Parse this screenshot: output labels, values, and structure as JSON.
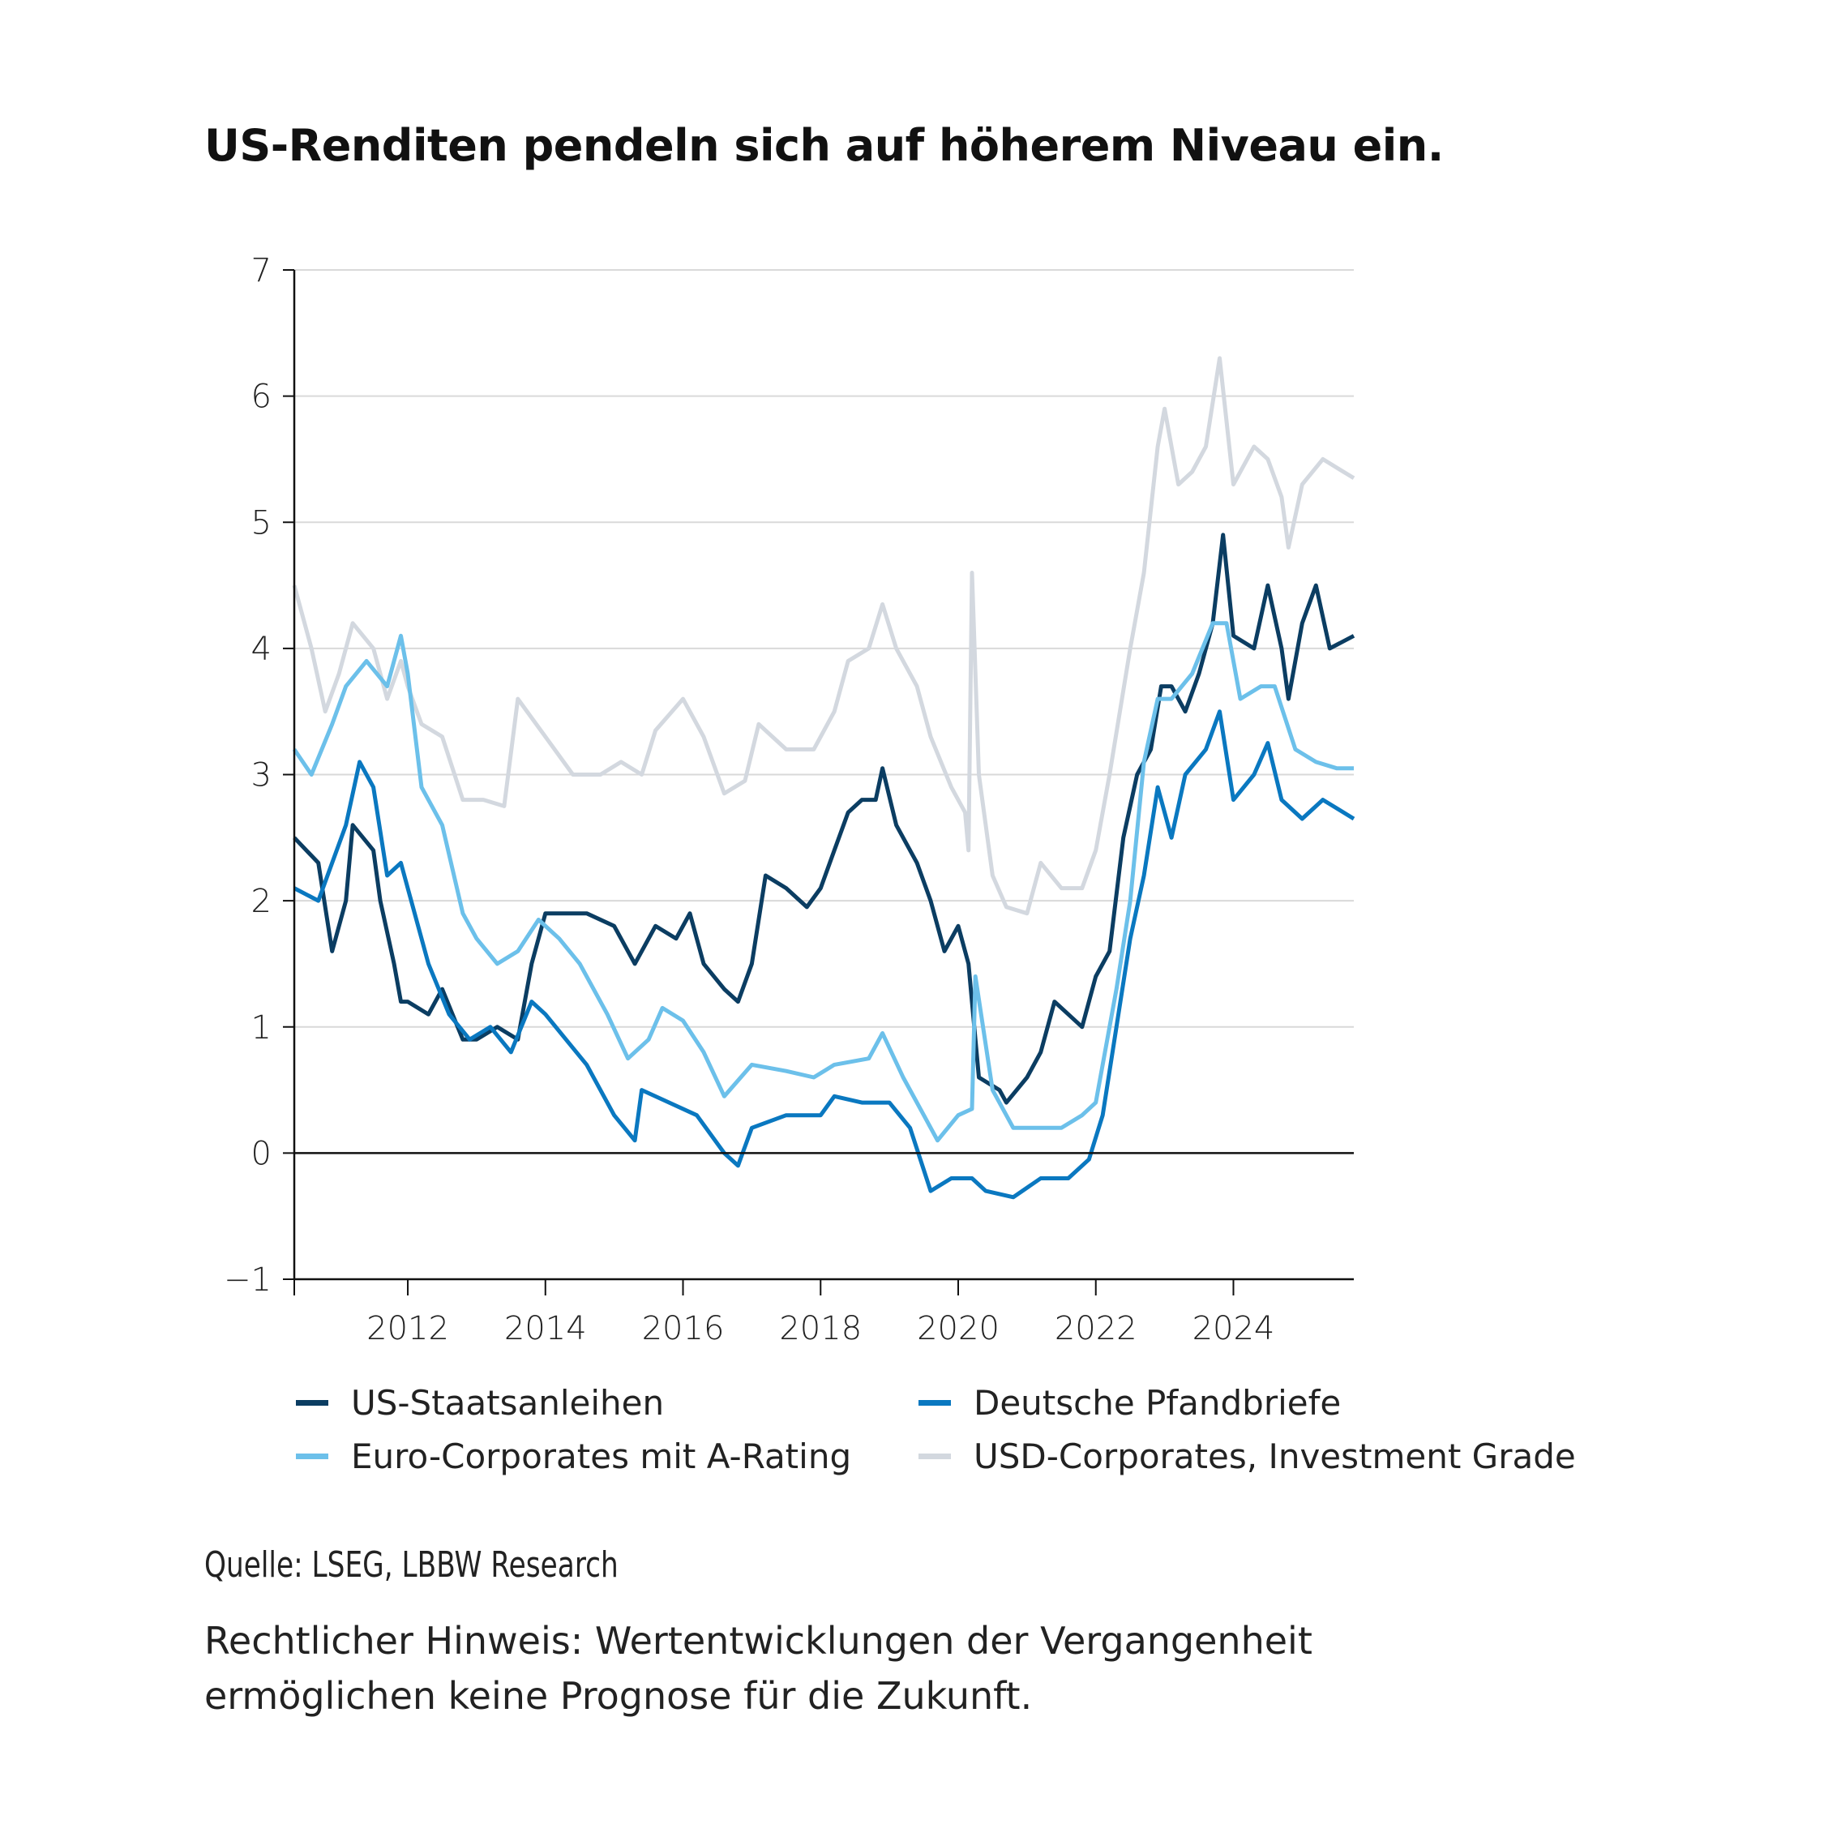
{
  "title": "US-Renditen pendeln sich auf höherem Niveau ein.",
  "source": "Quelle: LSEG, LBBW Research",
  "note_line1": "Rechtlicher Hinweis: Wertentwicklungen der Vergangenheit",
  "note_line2": "ermöglichen keine Prognose für die Zukunft.",
  "chart_data": {
    "type": "line",
    "title": "US-Renditen pendeln sich auf höherem Niveau ein.",
    "xlabel": "",
    "ylabel": "",
    "xlim": [
      2010.35,
      2025.75
    ],
    "ylim": [
      -1,
      7
    ],
    "yticks": [
      -1,
      0,
      1,
      2,
      3,
      4,
      5,
      6,
      7
    ],
    "ytick_labels": [
      "−1",
      "0",
      "1",
      "2",
      "3",
      "4",
      "5",
      "6",
      "7"
    ],
    "xticks": [
      2012,
      2014,
      2016,
      2018,
      2020,
      2022,
      2024
    ],
    "xtick_labels": [
      "2012",
      "2014",
      "2016",
      "2018",
      "2020",
      "2022",
      "2024"
    ],
    "grid": "horizontal",
    "legend_position": "bottom",
    "series": [
      {
        "name": "US-Staatsanleihen",
        "color": "#0b3d62",
        "x": [
          2010.35,
          2010.7,
          2010.9,
          2011.1,
          2011.2,
          2011.5,
          2011.6,
          2011.8,
          2011.9,
          2012.0,
          2012.3,
          2012.5,
          2012.8,
          2013.0,
          2013.3,
          2013.6,
          2013.8,
          2014.0,
          2014.3,
          2014.6,
          2015.0,
          2015.3,
          2015.6,
          2015.9,
          2016.1,
          2016.3,
          2016.6,
          2016.8,
          2017.0,
          2017.2,
          2017.5,
          2017.8,
          2018.0,
          2018.2,
          2018.4,
          2018.6,
          2018.8,
          2018.9,
          2019.1,
          2019.4,
          2019.6,
          2019.8,
          2020.0,
          2020.15,
          2020.3,
          2020.6,
          2020.7,
          2021.0,
          2021.2,
          2021.4,
          2021.6,
          2021.8,
          2022.0,
          2022.2,
          2022.4,
          2022.6,
          2022.8,
          2022.95,
          2023.1,
          2023.3,
          2023.5,
          2023.7,
          2023.85,
          2024.0,
          2024.3,
          2024.5,
          2024.7,
          2024.8,
          2025.0,
          2025.2,
          2025.4,
          2025.75
        ],
        "y": [
          2.5,
          2.3,
          1.6,
          2.0,
          2.6,
          2.4,
          2.0,
          1.5,
          1.2,
          1.2,
          1.1,
          1.3,
          0.9,
          0.9,
          1.0,
          0.9,
          1.5,
          1.9,
          1.9,
          1.9,
          1.8,
          1.5,
          1.8,
          1.7,
          1.9,
          1.5,
          1.3,
          1.2,
          1.5,
          2.2,
          2.1,
          1.95,
          2.1,
          2.4,
          2.7,
          2.8,
          2.8,
          3.05,
          2.6,
          2.3,
          2.0,
          1.6,
          1.8,
          1.5,
          0.6,
          0.5,
          0.4,
          0.6,
          0.8,
          1.2,
          1.1,
          1.0,
          1.4,
          1.6,
          2.5,
          3.0,
          3.2,
          3.7,
          3.7,
          3.5,
          3.8,
          4.2,
          4.9,
          4.1,
          4.0,
          4.5,
          4.0,
          3.6,
          4.2,
          4.5,
          4.0,
          4.1
        ]
      },
      {
        "name": "Deutsche Pfandbriefe",
        "color": "#0a78c0",
        "x": [
          2010.35,
          2010.7,
          2010.9,
          2011.1,
          2011.3,
          2011.5,
          2011.7,
          2011.9,
          2012.0,
          2012.3,
          2012.6,
          2012.9,
          2013.2,
          2013.5,
          2013.8,
          2014.0,
          2014.3,
          2014.6,
          2015.0,
          2015.3,
          2015.4,
          2015.8,
          2016.2,
          2016.6,
          2016.8,
          2017.0,
          2017.5,
          2018.0,
          2018.2,
          2018.6,
          2019.0,
          2019.3,
          2019.6,
          2019.9,
          2020.2,
          2020.4,
          2020.8,
          2021.2,
          2021.6,
          2021.9,
          2022.1,
          2022.3,
          2022.5,
          2022.7,
          2022.9,
          2023.1,
          2023.3,
          2023.6,
          2023.8,
          2024.0,
          2024.3,
          2024.5,
          2024.7,
          2025.0,
          2025.3,
          2025.75
        ],
        "y": [
          2.1,
          2.0,
          2.3,
          2.6,
          3.1,
          2.9,
          2.2,
          2.3,
          2.1,
          1.5,
          1.1,
          0.9,
          1.0,
          0.8,
          1.2,
          1.1,
          0.9,
          0.7,
          0.3,
          0.1,
          0.5,
          0.4,
          0.3,
          0.0,
          -0.1,
          0.2,
          0.3,
          0.3,
          0.45,
          0.4,
          0.4,
          0.2,
          -0.3,
          -0.2,
          -0.2,
          -0.3,
          -0.35,
          -0.2,
          -0.2,
          -0.05,
          0.3,
          1.0,
          1.7,
          2.2,
          2.9,
          2.5,
          3.0,
          3.2,
          3.5,
          2.8,
          3.0,
          3.25,
          2.8,
          2.65,
          2.8,
          2.65
        ]
      },
      {
        "name": "Euro-Corporates mit A-Rating",
        "color": "#6cc0ea",
        "x": [
          2010.35,
          2010.6,
          2010.9,
          2011.1,
          2011.4,
          2011.7,
          2011.9,
          2012.0,
          2012.2,
          2012.5,
          2012.8,
          2013.0,
          2013.3,
          2013.6,
          2013.9,
          2014.2,
          2014.5,
          2014.9,
          2015.2,
          2015.5,
          2015.7,
          2016.0,
          2016.3,
          2016.6,
          2017.0,
          2017.5,
          2017.9,
          2018.2,
          2018.7,
          2018.9,
          2019.2,
          2019.5,
          2019.7,
          2020.0,
          2020.2,
          2020.25,
          2020.5,
          2020.8,
          2021.1,
          2021.5,
          2021.8,
          2022.0,
          2022.3,
          2022.5,
          2022.7,
          2022.9,
          2023.1,
          2023.4,
          2023.7,
          2023.9,
          2024.1,
          2024.4,
          2024.6,
          2024.9,
          2025.2,
          2025.5,
          2025.75
        ],
        "y": [
          3.2,
          3.0,
          3.4,
          3.7,
          3.9,
          3.7,
          4.1,
          3.8,
          2.9,
          2.6,
          1.9,
          1.7,
          1.5,
          1.6,
          1.85,
          1.7,
          1.5,
          1.1,
          0.75,
          0.9,
          1.15,
          1.05,
          0.8,
          0.45,
          0.7,
          0.65,
          0.6,
          0.7,
          0.75,
          0.95,
          0.6,
          0.3,
          0.1,
          0.3,
          0.35,
          1.4,
          0.5,
          0.2,
          0.2,
          0.2,
          0.3,
          0.4,
          1.3,
          2.0,
          3.1,
          3.6,
          3.6,
          3.8,
          4.2,
          4.2,
          3.6,
          3.7,
          3.7,
          3.2,
          3.1,
          3.05,
          3.05
        ]
      },
      {
        "name": "USD-Corporates, Investment Grade",
        "color": "#d3d8df",
        "x": [
          2010.35,
          2010.6,
          2010.8,
          2011.0,
          2011.2,
          2011.5,
          2011.7,
          2011.9,
          2012.0,
          2012.2,
          2012.5,
          2012.8,
          2013.1,
          2013.4,
          2013.6,
          2014.0,
          2014.4,
          2014.8,
          2015.1,
          2015.4,
          2015.6,
          2016.0,
          2016.3,
          2016.6,
          2016.9,
          2017.1,
          2017.5,
          2017.9,
          2018.2,
          2018.4,
          2018.7,
          2018.9,
          2019.1,
          2019.4,
          2019.6,
          2019.9,
          2020.1,
          2020.15,
          2020.2,
          2020.3,
          2020.5,
          2020.7,
          2021.0,
          2021.2,
          2021.5,
          2021.8,
          2022.0,
          2022.2,
          2022.5,
          2022.7,
          2022.9,
          2023.0,
          2023.2,
          2023.4,
          2023.6,
          2023.8,
          2024.0,
          2024.3,
          2024.5,
          2024.7,
          2024.8,
          2025.0,
          2025.3,
          2025.75
        ],
        "y": [
          4.5,
          4.0,
          3.5,
          3.8,
          4.2,
          4.0,
          3.6,
          3.9,
          3.7,
          3.4,
          3.3,
          2.8,
          2.8,
          2.75,
          3.6,
          3.3,
          3.0,
          3.0,
          3.1,
          3.0,
          3.35,
          3.6,
          3.3,
          2.85,
          2.95,
          3.4,
          3.2,
          3.2,
          3.5,
          3.9,
          4.0,
          4.35,
          4.0,
          3.7,
          3.3,
          2.9,
          2.7,
          2.4,
          4.6,
          3.0,
          2.2,
          1.95,
          1.9,
          2.3,
          2.1,
          2.1,
          2.4,
          3.0,
          4.0,
          4.6,
          5.6,
          5.9,
          5.3,
          5.4,
          5.6,
          6.3,
          5.3,
          5.6,
          5.5,
          5.2,
          4.8,
          5.3,
          5.5,
          5.35
        ]
      }
    ]
  }
}
